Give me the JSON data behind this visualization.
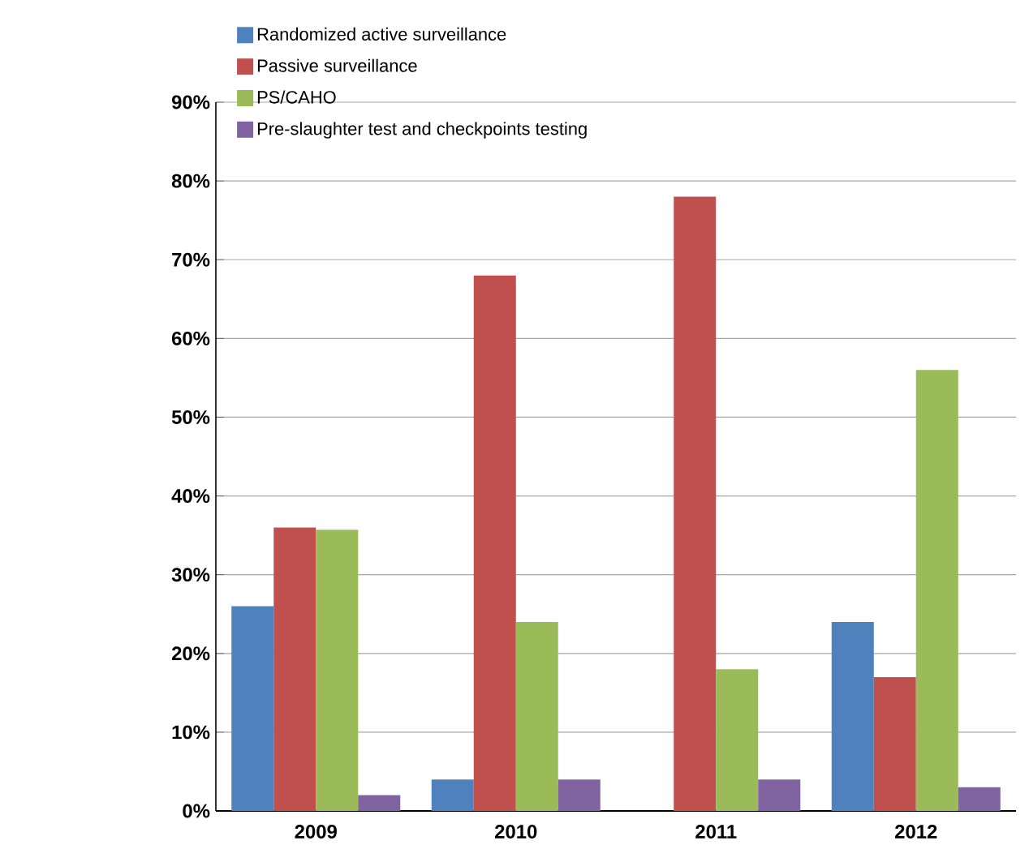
{
  "chart_data": {
    "type": "bar",
    "categories": [
      "2009",
      "2010",
      "2011",
      "2012"
    ],
    "series": [
      {
        "name": "Randomized active surveillance",
        "color": "#4f81bd",
        "values": [
          26,
          4,
          0,
          24
        ]
      },
      {
        "name": "Passive surveillance",
        "color": "#c0504d",
        "values": [
          36,
          68,
          78,
          17
        ]
      },
      {
        "name": "PS/CAHO",
        "color": "#9bbb59",
        "values": [
          35.7,
          24,
          18,
          56
        ]
      },
      {
        "name": "Pre-slaughter test and checkpoints testing",
        "color": "#8064a2",
        "values": [
          2,
          4,
          4,
          3
        ]
      }
    ],
    "ylim": [
      0,
      90
    ],
    "yticks": [
      {
        "value": 0,
        "label": "0%"
      },
      {
        "value": 10,
        "label": "10%"
      },
      {
        "value": 20,
        "label": "20%"
      },
      {
        "value": 30,
        "label": "30%"
      },
      {
        "value": 40,
        "label": "40%"
      },
      {
        "value": 50,
        "label": "50%"
      },
      {
        "value": 60,
        "label": "60%"
      },
      {
        "value": 70,
        "label": "70%"
      },
      {
        "value": 80,
        "label": "80%"
      },
      {
        "value": 90,
        "label": "90%"
      }
    ],
    "grid": "y",
    "legend": "top left"
  }
}
